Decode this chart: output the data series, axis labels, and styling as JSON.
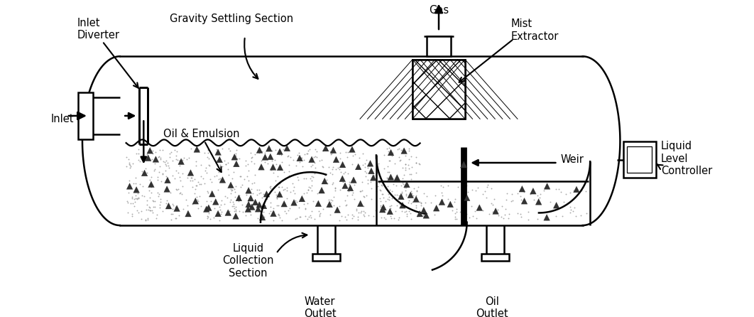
{
  "bg_color": "#ffffff",
  "line_color": "#000000",
  "lw": 1.8,
  "labels": {
    "inlet_diverter": "Inlet\nDiverter",
    "gravity_settling": "Gravity Settling Section",
    "inlet": "Inlet",
    "oil_emulsion": "Oil & Emulsion",
    "liquid_collection": "Liquid\nCollection\nSection",
    "water_outlet": "Water\nOutlet",
    "oil_outlet": "Oil\nOutlet",
    "gas": "Gas",
    "mist_extractor": "Mist\nExtractor",
    "liquid_level": "Liquid\nLevel\nController",
    "weir": "Weir"
  }
}
